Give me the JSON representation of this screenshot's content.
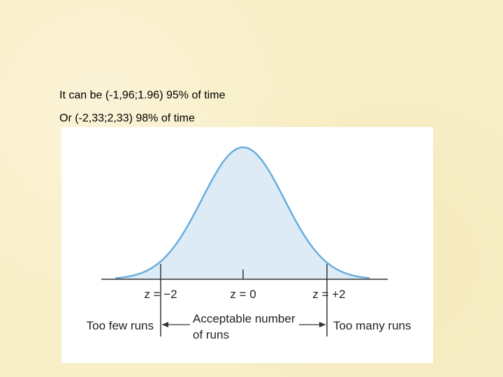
{
  "slide": {
    "lines": [
      "It can be  (-1,96;1.96) 95% of time",
      "Or (-2,33;2,33) 98% of time"
    ],
    "figure": {
      "z_labels": [
        "z = −2",
        "z = 0",
        "z = +2"
      ],
      "too_few": "Too few runs",
      "acceptable": [
        "Acceptable number",
        "of runs"
      ],
      "too_many": "Too many runs"
    }
  }
}
